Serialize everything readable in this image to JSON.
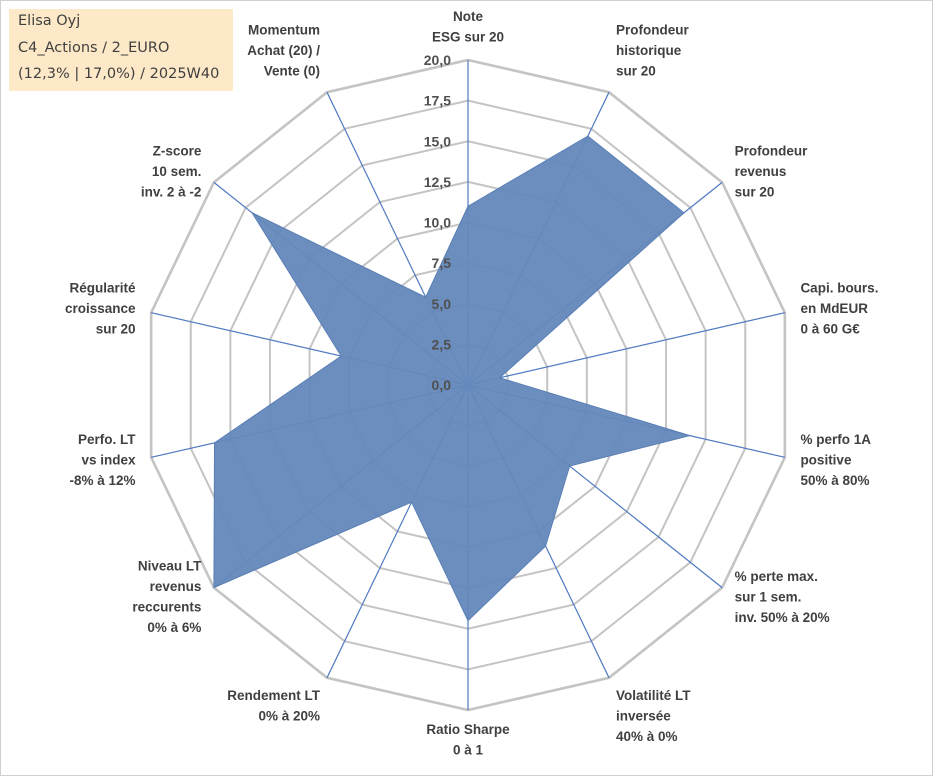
{
  "header": {
    "line1": "Elisa Oyj",
    "line2": "C4_Actions / 2_EURO",
    "line3": "(12,3% | 17,0%) / 2025W40"
  },
  "chart_data": {
    "type": "radar",
    "title": "",
    "rmin": 0,
    "rmax": 20,
    "tick_step": 2.5,
    "tick_labels": [
      "0,0",
      "2,5",
      "5,0",
      "7,5",
      "10,0",
      "12,5",
      "15,0",
      "17,5",
      "20,0"
    ],
    "axes": [
      {
        "label": [
          "Note",
          "ESG sur 20"
        ],
        "value": 11
      },
      {
        "label": [
          "Profondeur",
          "historique",
          "sur 20"
        ],
        "value": 17
      },
      {
        "label": [
          "Profondeur",
          "revenus",
          "sur 20"
        ],
        "value": 17
      },
      {
        "label": [
          "Capi. bours.",
          "en MdEUR",
          "0 à 60 G€"
        ],
        "value": 2
      },
      {
        "label": [
          "% perfo 1A",
          "positive",
          "50% à 80%"
        ],
        "value": 14
      },
      {
        "label": [
          "% perte max.",
          "sur 1 sem.",
          "inv. 50% à 20%"
        ],
        "value": 8
      },
      {
        "label": [
          "Volatilité LT",
          "inversée",
          "40% à 0%"
        ],
        "value": 11
      },
      {
        "label": [
          "Ratio Sharpe",
          "0 à 1"
        ],
        "value": 14.5
      },
      {
        "label": [
          "Rendement LT",
          "0% à 20%"
        ],
        "value": 8
      },
      {
        "label": [
          "Niveau LT",
          "revenus",
          "reccurents",
          "0% à 6%"
        ],
        "value": 20
      },
      {
        "label": [
          "Perfo. LT",
          "vs index",
          "-8% à 12%"
        ],
        "value": 16
      },
      {
        "label": [
          "Régularité",
          "croissance",
          "sur 20"
        ],
        "value": 8
      },
      {
        "label": [
          "Z-score",
          "10 sem.",
          "inv. 2 à -2"
        ],
        "value": 17
      },
      {
        "label": [
          "Momentum",
          "Achat (20) /",
          "Vente (0)"
        ],
        "value": 6
      }
    ],
    "colors": {
      "fill": "#6488ba",
      "stroke": "#5a7fb5",
      "grid": "#c4c4c4",
      "spoke": "#4f7ac0",
      "text": "#404040"
    }
  }
}
